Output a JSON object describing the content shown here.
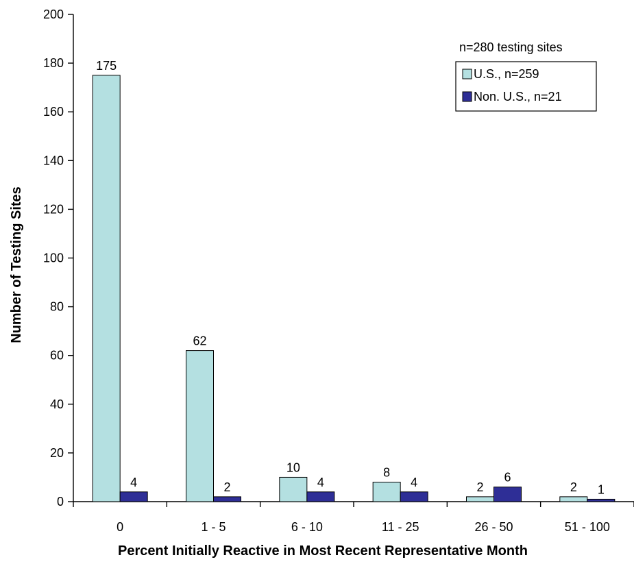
{
  "chart_data": {
    "type": "bar",
    "categories": [
      "0",
      "1 - 5",
      "6 - 10",
      "11 - 25",
      "26 - 50",
      "51 - 100"
    ],
    "series": [
      {
        "name": "U.S., n=259",
        "values": [
          175,
          62,
          10,
          8,
          2,
          2
        ],
        "color": "#b4e0e1"
      },
      {
        "name": "Non. U.S., n=21",
        "values": [
          4,
          2,
          4,
          4,
          6,
          1
        ],
        "color": "#2e2e96"
      }
    ],
    "data_labels": [
      [
        "175",
        "62",
        "10",
        "8",
        "2",
        "2"
      ],
      [
        "4",
        "2",
        "4",
        "4",
        "6",
        "1"
      ]
    ],
    "title": "",
    "note": "n=280 testing sites",
    "xlabel": "Percent Initially Reactive in Most Recent Representative Month",
    "ylabel": "Number of Testing Sites",
    "ylim": [
      0,
      200
    ],
    "yticks": [
      0,
      20,
      40,
      60,
      80,
      100,
      120,
      140,
      160,
      180,
      200
    ],
    "grid": false,
    "legend_position": "top-right"
  }
}
